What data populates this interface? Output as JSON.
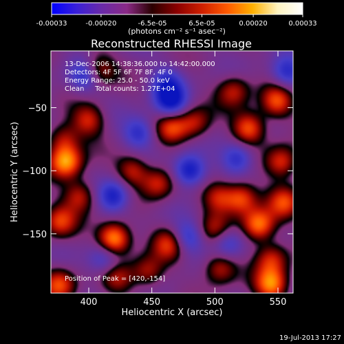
{
  "colorbar": {
    "tick_labels": [
      "-0.00033",
      "-0.00020",
      "-6.5e-05",
      "6.5e-05",
      "0.00020",
      "0.00033"
    ],
    "tick_values": [
      -0.00033,
      -0.0002,
      -6.5e-05,
      6.5e-05,
      0.0002,
      0.00033
    ],
    "range": [
      -0.00033,
      0.00033
    ],
    "units_label": "(photons cm⁻² s⁻¹ asec⁻²)",
    "colors": [
      "#0000ff",
      "#3a20d8",
      "#6a2aa8",
      "#8a2a86",
      "#2a0000",
      "#8b0000",
      "#d02000",
      "#ff5a00",
      "#ffb000",
      "#fff4c0",
      "#ffffff"
    ]
  },
  "chart_data": {
    "type": "heatmap",
    "title": "Reconstructed RHESSI Image",
    "xlabel": "Heliocentric X (arcsec)",
    "ylabel": "Heliocentric Y (arcsec)",
    "xlim": [
      370,
      562
    ],
    "ylim": [
      -197,
      -5
    ],
    "x_ticks": [
      400,
      450,
      500,
      550
    ],
    "y_ticks": [
      -50,
      -100,
      -150
    ],
    "annotations": [
      "13-Dec-2006 14:38:36.000 to 14:42:00.000",
      "Detectors: 4F 5F 6F 7F 8F, 4F 0",
      "Energy Range: 25.0 - 50.0 keV",
      "Clean     Total counts: 1.27E+04"
    ],
    "peak_label": "Position of Peak = [420,-154]",
    "peak": [
      420,
      -154
    ],
    "sources": [
      {
        "x": 420,
        "y": -154,
        "v": 1.0
      },
      {
        "x": 382,
        "y": -93,
        "v": 0.9
      },
      {
        "x": 535,
        "y": -143,
        "v": 0.85
      },
      {
        "x": 521,
        "y": -122,
        "v": 0.7
      },
      {
        "x": 527,
        "y": -66,
        "v": 0.75
      },
      {
        "x": 549,
        "y": -45,
        "v": 0.7
      },
      {
        "x": 553,
        "y": -93,
        "v": 0.65
      },
      {
        "x": 545,
        "y": -190,
        "v": 0.85
      },
      {
        "x": 504,
        "y": -177,
        "v": 0.55
      },
      {
        "x": 464,
        "y": -158,
        "v": 0.6
      },
      {
        "x": 455,
        "y": -110,
        "v": 0.55
      },
      {
        "x": 435,
        "y": -100,
        "v": 0.55
      },
      {
        "x": 393,
        "y": -120,
        "v": 0.55
      },
      {
        "x": 377,
        "y": -140,
        "v": 0.6
      },
      {
        "x": 400,
        "y": -60,
        "v": 0.55
      },
      {
        "x": 380,
        "y": -75,
        "v": 0.5
      },
      {
        "x": 466,
        "y": -66,
        "v": 0.6
      },
      {
        "x": 484,
        "y": -62,
        "v": 0.5
      },
      {
        "x": 503,
        "y": -121,
        "v": 0.55
      },
      {
        "x": 555,
        "y": -125,
        "v": 0.6
      },
      {
        "x": 377,
        "y": -190,
        "v": 0.65
      },
      {
        "x": 545,
        "y": -170,
        "v": 0.55
      },
      {
        "x": 500,
        "y": -147,
        "v": 0.45
      },
      {
        "x": 423,
        "y": -185,
        "v": 0.45
      },
      {
        "x": 408,
        "y": -20,
        "v": 0.55
      },
      {
        "x": 447,
        "y": -180,
        "v": 0.5
      },
      {
        "x": 515,
        "y": -37,
        "v": 0.5
      },
      {
        "x": 480,
        "y": -100,
        "v": -0.8
      },
      {
        "x": 420,
        "y": -120,
        "v": -0.7
      },
      {
        "x": 465,
        "y": -45,
        "v": -0.75
      },
      {
        "x": 518,
        "y": -90,
        "v": -0.6
      },
      {
        "x": 478,
        "y": -153,
        "v": -0.55
      },
      {
        "x": 397,
        "y": -25,
        "v": -0.55
      },
      {
        "x": 557,
        "y": -22,
        "v": -0.6
      },
      {
        "x": 440,
        "y": -70,
        "v": -0.55
      },
      {
        "x": 462,
        "y": -30,
        "v": -0.5
      },
      {
        "x": 412,
        "y": -170,
        "v": -0.5
      },
      {
        "x": 510,
        "y": -157,
        "v": -0.5
      }
    ]
  },
  "timestamp": "19-Jul-2013 17:27"
}
